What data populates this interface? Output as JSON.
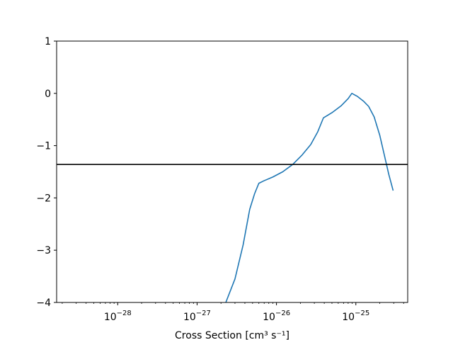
{
  "chart_data": {
    "type": "line",
    "title": "",
    "xlabel": "Cross Section [cm³ s⁻¹]",
    "ylabel": "",
    "xscale": "log",
    "xlim": [
      1.7e-29,
      4.5e-25
    ],
    "ylim": [
      -4,
      1
    ],
    "grid": false,
    "legend": "none",
    "x_tick_values": [
      1e-28,
      1e-27,
      1e-26,
      1e-25
    ],
    "x_tick_labels": [
      {
        "base": "10",
        "exp": "−28"
      },
      {
        "base": "10",
        "exp": "−27"
      },
      {
        "base": "10",
        "exp": "−26"
      },
      {
        "base": "10",
        "exp": "−25"
      }
    ],
    "y_ticks": [
      1,
      0,
      -1,
      -2,
      -3,
      -4
    ],
    "y_tick_labels": [
      "1",
      "0",
      "−1",
      "−2",
      "−3",
      "−4"
    ],
    "hline": {
      "y": -1.36,
      "color": "#000000"
    },
    "series": [
      {
        "color": "#1f77b4",
        "x": [
          2.3e-27,
          3e-27,
          3.8e-27,
          4.6e-27,
          5.3e-27,
          6e-27,
          7e-27,
          9e-27,
          1.2e-26,
          1.6e-26,
          2.1e-26,
          2.7e-26,
          3.3e-26,
          3.9e-26,
          5e-26,
          6.5e-26,
          8e-26,
          8.9e-26,
          1.05e-25,
          1.25e-25,
          1.45e-25,
          1.7e-25,
          2e-25,
          2.3e-25,
          2.6e-25,
          2.95e-25
        ],
        "y": [
          -4.0,
          -3.55,
          -2.9,
          -2.22,
          -1.92,
          -1.72,
          -1.67,
          -1.6,
          -1.5,
          -1.36,
          -1.18,
          -0.98,
          -0.74,
          -0.47,
          -0.37,
          -0.24,
          -0.1,
          0.0,
          -0.06,
          -0.15,
          -0.25,
          -0.45,
          -0.8,
          -1.2,
          -1.55,
          -1.86
        ]
      }
    ]
  }
}
